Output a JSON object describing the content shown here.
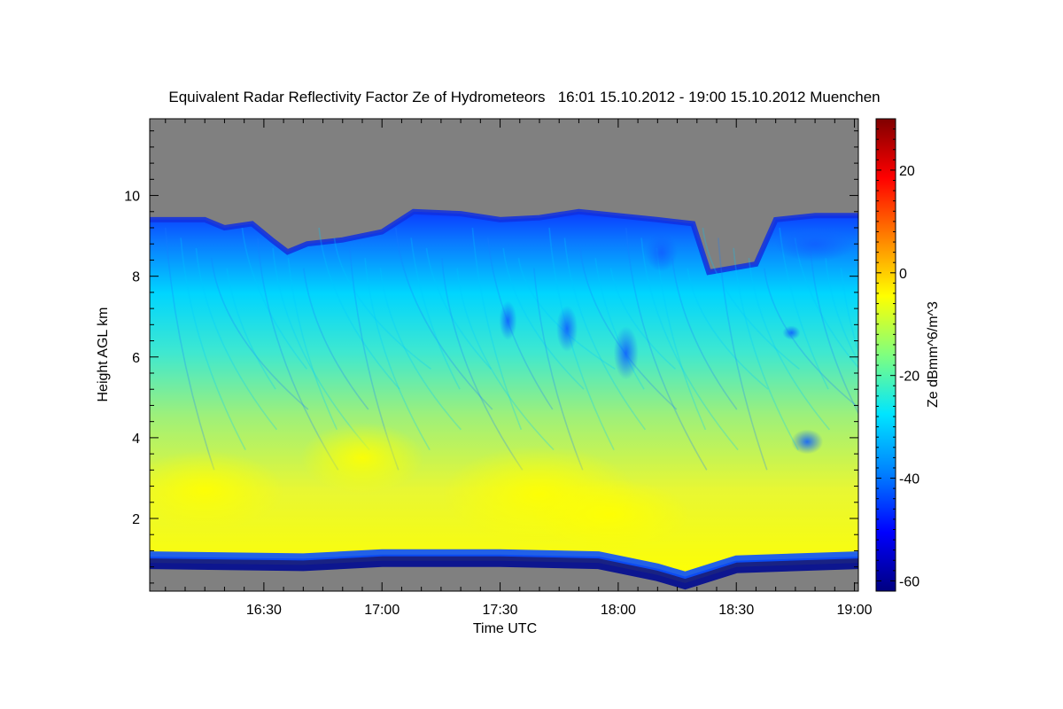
{
  "chart_data": {
    "type": "heatmap",
    "title": "Equivalent Radar Reflectivity Factor Ze of Hydrometeors   16:01 15.10.2012 - 19:00 15.10.2012 Muenchen",
    "xlabel": "Time UTC",
    "ylabel": "Height AGL km",
    "colorbar_label": "Ze dBmm^6/m^3",
    "x_tick_labels": [
      "16:30",
      "17:00",
      "17:30",
      "18:00",
      "18:30",
      "19:00"
    ],
    "x_ticks_minutes": [
      990,
      1020,
      1050,
      1080,
      1110,
      1140
    ],
    "xlim_minutes": [
      961,
      1141
    ],
    "y_ticks": [
      2,
      4,
      6,
      8,
      10
    ],
    "ylim": [
      0.2,
      11.9
    ],
    "colorbar_ticks": [
      20,
      0,
      -20,
      -40,
      -60
    ],
    "colorbar_range": [
      -62,
      30
    ],
    "no_data_color": "#808080",
    "colormap": [
      "#000080",
      "#0000ff",
      "#0080ff",
      "#00e5ff",
      "#7fff7f",
      "#ffff00",
      "#ff8000",
      "#ff0000",
      "#800000"
    ],
    "cloud_top_km": [
      [
        961,
        9.4
      ],
      [
        975,
        9.4
      ],
      [
        980,
        9.2
      ],
      [
        987,
        9.3
      ],
      [
        992,
        8.9
      ],
      [
        996,
        8.6
      ],
      [
        1001,
        8.8
      ],
      [
        1010,
        8.9
      ],
      [
        1020,
        9.1
      ],
      [
        1028,
        9.6
      ],
      [
        1040,
        9.55
      ],
      [
        1050,
        9.4
      ],
      [
        1060,
        9.45
      ],
      [
        1070,
        9.6
      ],
      [
        1080,
        9.5
      ],
      [
        1090,
        9.4
      ],
      [
        1099,
        9.3
      ],
      [
        1103,
        8.1
      ],
      [
        1115,
        8.3
      ],
      [
        1120,
        9.4
      ],
      [
        1130,
        9.5
      ],
      [
        1141,
        9.5
      ]
    ],
    "cloud_base_km": [
      [
        961,
        0.9
      ],
      [
        1000,
        0.85
      ],
      [
        1020,
        0.95
      ],
      [
        1050,
        0.95
      ],
      [
        1075,
        0.9
      ],
      [
        1090,
        0.6
      ],
      [
        1097,
        0.4
      ],
      [
        1110,
        0.8
      ],
      [
        1141,
        0.9
      ]
    ]
  }
}
